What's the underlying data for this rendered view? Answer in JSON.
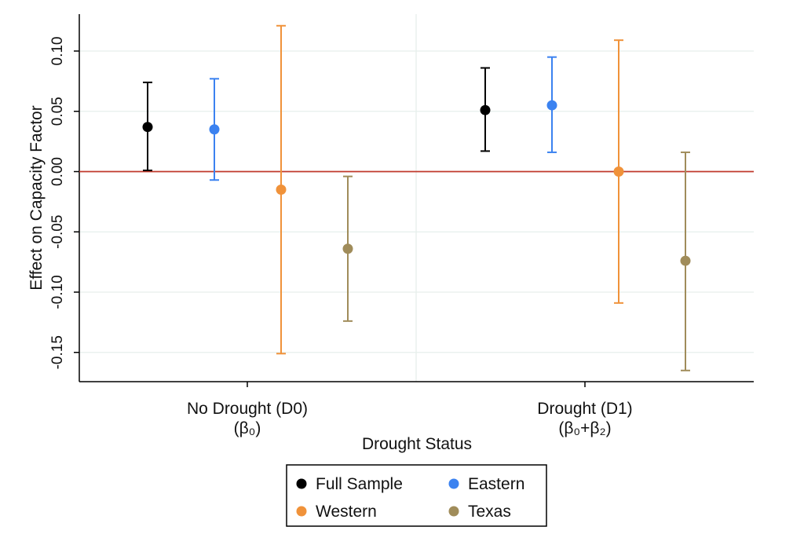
{
  "chart_data": {
    "type": "scatter",
    "title": "",
    "xlabel": "Drought Status",
    "ylabel": "Effect on Capacity Factor",
    "categories": [
      {
        "label": "No Drought (D0)",
        "sublabel": "(β₀)"
      },
      {
        "label": "Drought (D1)",
        "sublabel": "(β₀+β₂)"
      }
    ],
    "ylim": [
      -0.175,
      0.13
    ],
    "yticks": [
      "0.10",
      "0.05",
      "0.00",
      "-0.05",
      "-0.10",
      "-0.15"
    ],
    "yticks_values": [
      0.1,
      0.05,
      0.0,
      -0.05,
      -0.1,
      -0.15
    ],
    "grid": true,
    "reference_line": {
      "y": 0.0,
      "color": "#c0392b"
    },
    "legend_position": "bottom",
    "series": [
      {
        "name": "Full Sample",
        "color": "#000000",
        "points": [
          {
            "category": "No Drought (D0)",
            "estimate": 0.037,
            "ci_low": 0.001,
            "ci_high": 0.074
          },
          {
            "category": "Drought (D1)",
            "estimate": 0.051,
            "ci_low": 0.017,
            "ci_high": 0.086
          }
        ]
      },
      {
        "name": "Eastern",
        "color": "#3b82f0",
        "points": [
          {
            "category": "No Drought (D0)",
            "estimate": 0.035,
            "ci_low": -0.007,
            "ci_high": 0.077
          },
          {
            "category": "Drought (D1)",
            "estimate": 0.055,
            "ci_low": 0.016,
            "ci_high": 0.095
          }
        ]
      },
      {
        "name": "Western",
        "color": "#f0923a",
        "points": [
          {
            "category": "No Drought (D0)",
            "estimate": -0.015,
            "ci_low": -0.151,
            "ci_high": 0.121
          },
          {
            "category": "Drought (D1)",
            "estimate": 0.0,
            "ci_low": -0.109,
            "ci_high": 0.109
          }
        ]
      },
      {
        "name": "Texas",
        "color": "#a08c5a",
        "points": [
          {
            "category": "No Drought (D0)",
            "estimate": -0.064,
            "ci_low": -0.124,
            "ci_high": -0.004
          },
          {
            "category": "Drought (D1)",
            "estimate": -0.074,
            "ci_low": -0.165,
            "ci_high": 0.016
          }
        ]
      }
    ]
  }
}
